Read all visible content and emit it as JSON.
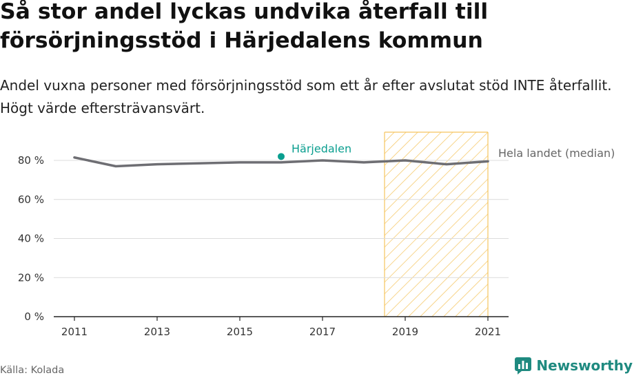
{
  "header": {
    "title": "Så stor andel lyckas undvika återfall till försörjningsstöd i Härjedalens kommun",
    "subtitle": "Andel vuxna personer med försörjningsstöd som ett år efter avslutat stöd INTE återfallit. Högt värde eftersträvansvärt."
  },
  "footer": {
    "source": "Källa: Kolada",
    "brand": "Newsworthy",
    "brand_icon": "bar-chart-logo-icon"
  },
  "colors": {
    "national_line": "#6e6e73",
    "harjedalen": "#0a9e8f",
    "highlight_fill": "#f5c45e",
    "highlight_border": "#f5c45e",
    "grid": "#dcdcdc",
    "brand": "#1f8a80"
  },
  "chart_data": {
    "type": "line",
    "x": [
      2011,
      2012,
      2013,
      2014,
      2015,
      2016,
      2017,
      2018,
      2019,
      2020,
      2021
    ],
    "xticks": [
      2011,
      2013,
      2015,
      2017,
      2019,
      2021
    ],
    "xtick_labels": [
      "2011",
      "2013",
      "2015",
      "2017",
      "2019",
      "2021"
    ],
    "yticks": [
      0,
      20,
      40,
      60,
      80
    ],
    "ytick_labels": [
      "0 %",
      "20 %",
      "40 %",
      "60 %",
      "80 %"
    ],
    "ylim": [
      0,
      80
    ],
    "xlim": [
      2011,
      2021
    ],
    "grid": true,
    "series": [
      {
        "name": "Hela landet (median)",
        "values": [
          81.5,
          77,
          78,
          78.5,
          79,
          79,
          80,
          79,
          80,
          78,
          79.5
        ]
      },
      {
        "name": "Härjedalen",
        "points": [
          {
            "x": 2016,
            "y": 82
          }
        ]
      }
    ],
    "highlight_period": {
      "from": 2018.5,
      "to": 2021
    }
  }
}
